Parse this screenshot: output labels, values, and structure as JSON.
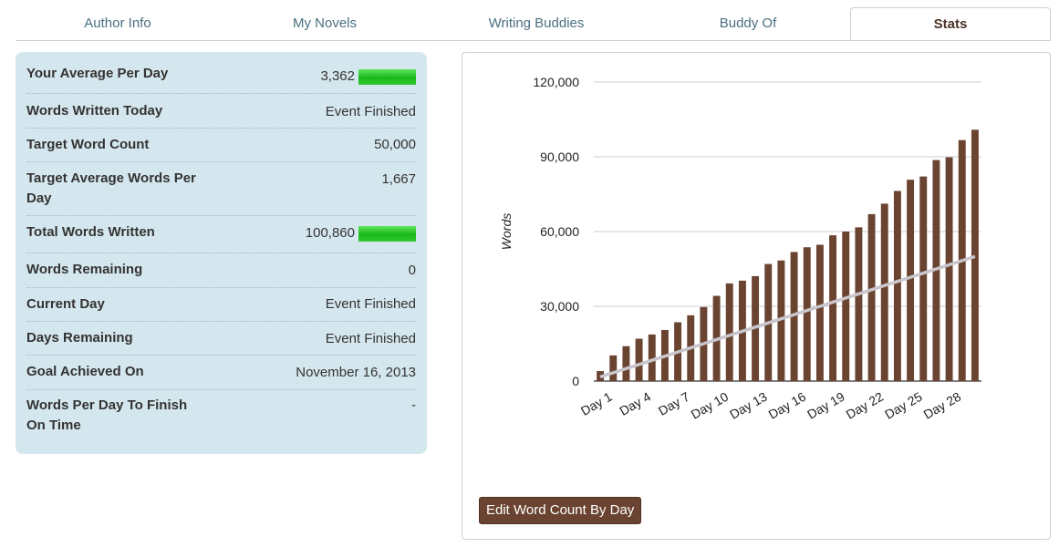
{
  "tabs": [
    {
      "label": "Author Info",
      "active": false
    },
    {
      "label": "My Novels",
      "active": false
    },
    {
      "label": "Writing Buddies",
      "active": false
    },
    {
      "label": "Buddy Of",
      "active": false
    },
    {
      "label": "Stats",
      "active": true
    }
  ],
  "stats": [
    {
      "label": "Your Average Per Day",
      "value": "3,362",
      "bar": true
    },
    {
      "label": "Words Written Today",
      "value": "Event Finished"
    },
    {
      "label": "Target Word Count",
      "value": "50,000"
    },
    {
      "label": "Target Average Words Per Day",
      "value": "1,667"
    },
    {
      "label": "Total Words Written",
      "value": "100,860",
      "bar": true
    },
    {
      "label": "Words Remaining",
      "value": "0"
    },
    {
      "label": "Current Day",
      "value": "Event Finished"
    },
    {
      "label": "Days Remaining",
      "value": "Event Finished"
    },
    {
      "label": "Goal Achieved On",
      "value": "November 16, 2013"
    },
    {
      "label": "Words Per Day To Finish On Time",
      "value": "-"
    }
  ],
  "edit_button_label": "Edit Word Count By Day",
  "colors": {
    "bar": "#6b4431",
    "target_line": "#c9c5cc",
    "accent_green": "#22c022",
    "panel_bg": "#d5e7ee"
  },
  "chart_data": {
    "type": "bar",
    "title": "",
    "xlabel": "",
    "ylabel": "Words",
    "ylim": [
      0,
      120000
    ],
    "yticks": [
      "0",
      "30,000",
      "60,000",
      "90,000",
      "120,000"
    ],
    "yticks_values": [
      0,
      30000,
      60000,
      90000,
      120000
    ],
    "x_tick_labels": [
      "Day 1",
      "Day 4",
      "Day 7",
      "Day 10",
      "Day 13",
      "Day 16",
      "Day 19",
      "Day 22",
      "Day 25",
      "Day 28"
    ],
    "categories": [
      "Day 1",
      "Day 2",
      "Day 3",
      "Day 4",
      "Day 5",
      "Day 6",
      "Day 7",
      "Day 8",
      "Day 9",
      "Day 10",
      "Day 11",
      "Day 12",
      "Day 13",
      "Day 14",
      "Day 15",
      "Day 16",
      "Day 17",
      "Day 18",
      "Day 19",
      "Day 20",
      "Day 21",
      "Day 22",
      "Day 23",
      "Day 24",
      "Day 25",
      "Day 26",
      "Day 27",
      "Day 28",
      "Day 29",
      "Day 30"
    ],
    "series": [
      {
        "type": "bar",
        "values": [
          4000,
          10300,
          14000,
          17000,
          18700,
          20500,
          23600,
          26400,
          29700,
          34200,
          39200,
          40300,
          42100,
          47000,
          48400,
          51800,
          53700,
          54700,
          58500,
          60000,
          61700,
          67000,
          71200,
          76300,
          80800,
          82100,
          88700,
          89800,
          96700,
          100860
        ]
      },
      {
        "type": "line",
        "values": [
          1667,
          3333,
          5000,
          6667,
          8333,
          10000,
          11667,
          13333,
          15000,
          16667,
          18333,
          20000,
          21667,
          23333,
          25000,
          26667,
          28333,
          30000,
          31667,
          33333,
          35000,
          36667,
          38333,
          40000,
          41667,
          43333,
          45000,
          46667,
          48333,
          50000
        ]
      }
    ],
    "grid": true,
    "legend": "none"
  }
}
